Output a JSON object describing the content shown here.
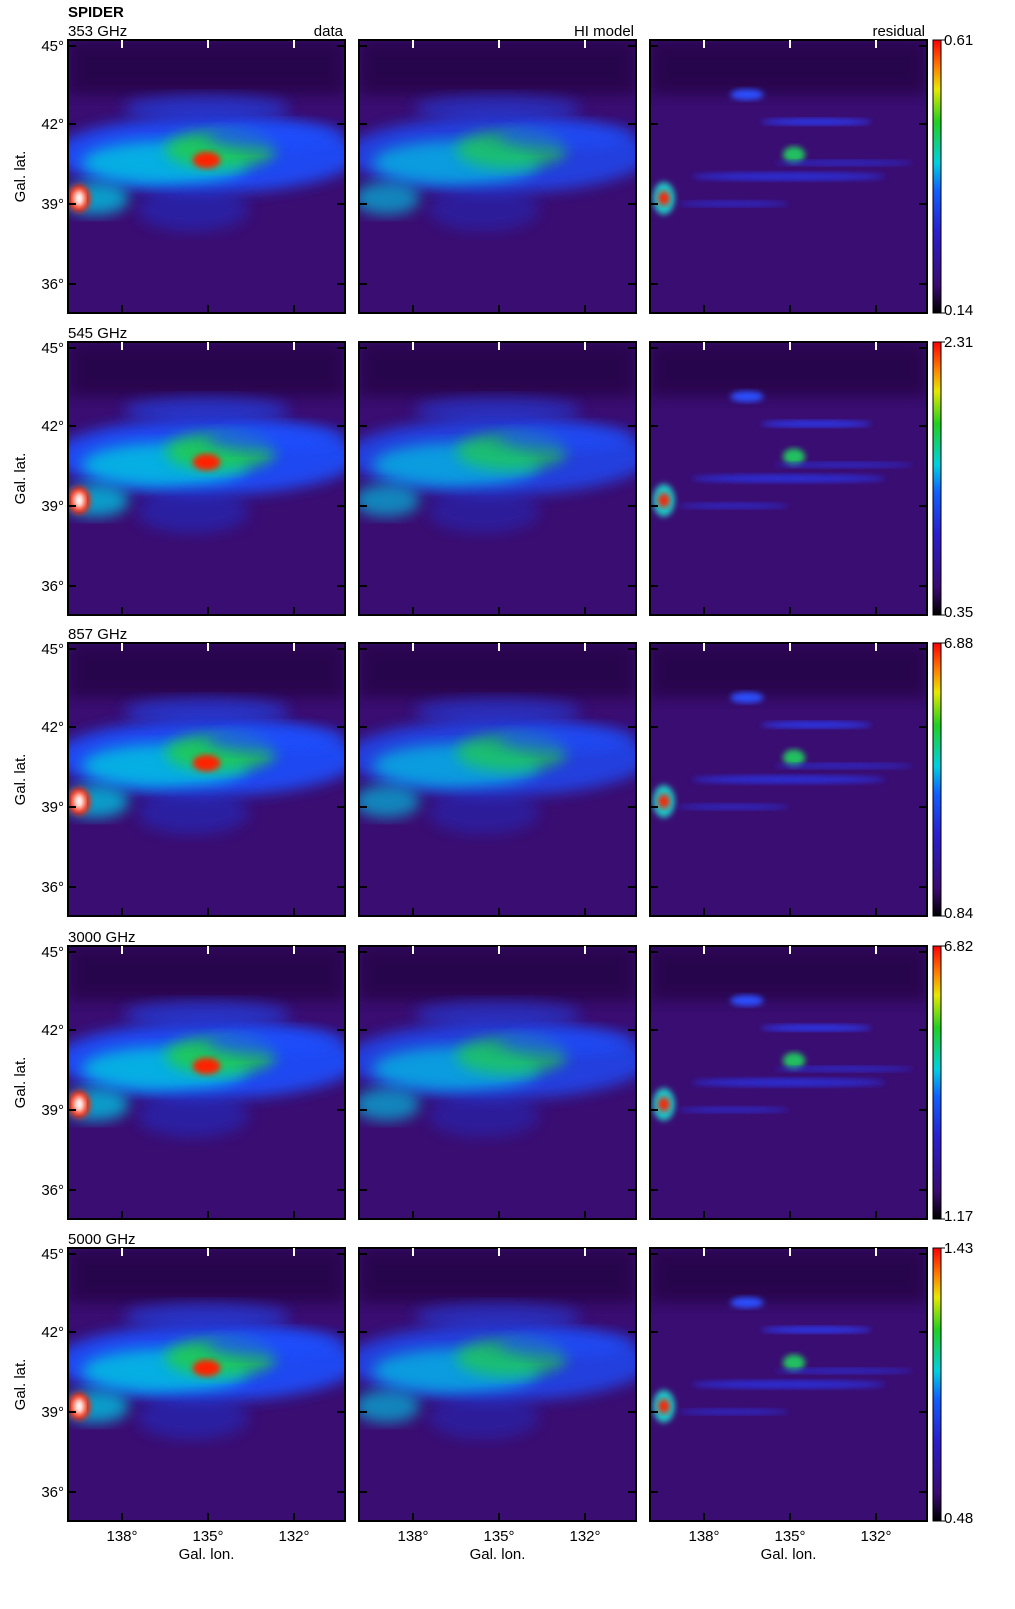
{
  "title": "SPIDER",
  "columns": [
    "data",
    "HI model",
    "residual"
  ],
  "rows": [
    {
      "label": "353 GHz",
      "colorbar": {
        "max": 0.61,
        "min": 0.14
      }
    },
    {
      "label": "545 GHz",
      "colorbar": {
        "max": 2.31,
        "min": 0.35
      }
    },
    {
      "label": "857 GHz",
      "colorbar": {
        "max": 6.88,
        "min": 0.84
      }
    },
    {
      "label": "3000 GHz",
      "colorbar": {
        "max": 6.82,
        "min": 1.17
      }
    },
    {
      "label": "5000 GHz",
      "colorbar": {
        "max": 1.43,
        "min": 0.48
      }
    }
  ],
  "y_axis": {
    "label": "Gal. lat.",
    "ticks": [
      "45°",
      "42°",
      "39°",
      "36°"
    ]
  },
  "x_axis": {
    "label": "Gal. lon.",
    "ticks": [
      "138°",
      "135°",
      "132°"
    ]
  }
}
